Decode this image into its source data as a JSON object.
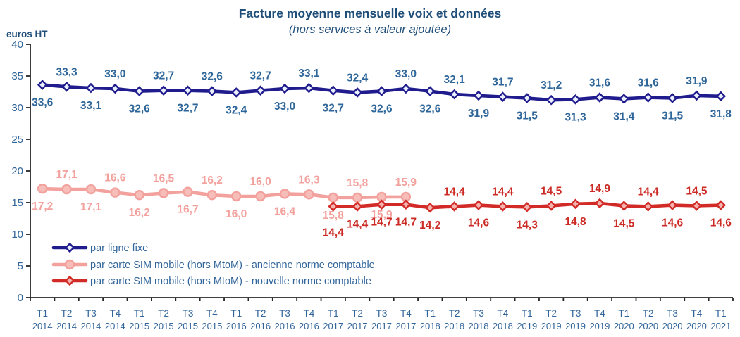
{
  "chart_data": {
    "type": "line",
    "title": "Facture moyenne mensuelle voix et données",
    "subtitle": "(hors services à valeur ajoutée)",
    "ylabel": "euros HT",
    "ylim": [
      0,
      40
    ],
    "ytick_step": 5,
    "grid": false,
    "decimal_separator": ",",
    "legend_position": "inside-bottom-left",
    "title_color": "#1F4E79",
    "axis_text_color": "#31659B",
    "axis_line_color": "#262626",
    "x": {
      "quarters": [
        "T1",
        "T2",
        "T3",
        "T4",
        "T1",
        "T2",
        "T3",
        "T4",
        "T1",
        "T2",
        "T3",
        "T4",
        "T1",
        "T2",
        "T3",
        "T4",
        "T1",
        "T2",
        "T3",
        "T4",
        "T1",
        "T2",
        "T3",
        "T4",
        "T1",
        "T2",
        "T3",
        "T4",
        "T1"
      ],
      "years": [
        "2014",
        "2014",
        "2014",
        "2014",
        "2015",
        "2015",
        "2015",
        "2015",
        "2016",
        "2016",
        "2016",
        "2016",
        "2017",
        "2017",
        "2017",
        "2017",
        "2018",
        "2018",
        "2018",
        "2018",
        "2019",
        "2019",
        "2019",
        "2019",
        "2020",
        "2020",
        "2020",
        "2020",
        "2021"
      ]
    },
    "series": [
      {
        "name": "par ligne fixe",
        "marker": "diamond",
        "color": "#201C8E",
        "marker_fill": "#EAF0FC",
        "label_color": "#2E6699",
        "start_index": 0,
        "values": [
          33.6,
          33.3,
          33.1,
          33.0,
          32.6,
          32.7,
          32.7,
          32.6,
          32.4,
          32.7,
          33.0,
          33.1,
          32.7,
          32.4,
          32.6,
          33.0,
          32.6,
          32.1,
          31.9,
          31.7,
          31.5,
          31.2,
          31.3,
          31.6,
          31.4,
          31.6,
          31.5,
          31.9,
          31.8
        ],
        "label_sides": [
          "below",
          "above",
          "below",
          "above",
          "below",
          "above",
          "below",
          "above",
          "below",
          "above",
          "below",
          "above",
          "below",
          "above",
          "below",
          "above",
          "below",
          "above",
          "below",
          "above",
          "below",
          "above",
          "below",
          "above",
          "below",
          "above",
          "below",
          "above",
          "below"
        ]
      },
      {
        "name": "par carte SIM mobile (hors MtoM) - ancienne norme comptable",
        "marker": "circle",
        "color": "#F2A19D",
        "marker_fill": "#F6BDB9",
        "label_color": "#F2A19D",
        "start_index": 0,
        "values": [
          17.2,
          17.1,
          17.1,
          16.6,
          16.2,
          16.5,
          16.7,
          16.2,
          16.0,
          16.0,
          16.4,
          16.3,
          15.8,
          15.8,
          15.9,
          15.9
        ],
        "label_sides": [
          "below",
          "above",
          "below",
          "above",
          "below",
          "above",
          "below",
          "above",
          "below",
          "above",
          "below",
          "above",
          "below",
          "above",
          "below",
          "above"
        ]
      },
      {
        "name": "par carte SIM mobile (hors MtoM) - nouvelle norme comptable",
        "marker": "diamond",
        "color": "#D22B27",
        "marker_fill": "#F4B3AE",
        "label_color": "#CB2B24",
        "start_index": 12,
        "values": [
          14.4,
          14.4,
          14.7,
          14.7,
          14.2,
          14.4,
          14.6,
          14.4,
          14.3,
          14.5,
          14.8,
          14.9,
          14.5,
          14.4,
          14.6,
          14.5,
          14.6
        ],
        "label_sides": [
          "below",
          "below",
          "below",
          "below",
          "below",
          "above",
          "below",
          "above",
          "below",
          "above",
          "below",
          "above",
          "below",
          "above",
          "below",
          "above",
          "below"
        ],
        "label_dy_overrides": {
          "0": 42
        }
      }
    ]
  }
}
